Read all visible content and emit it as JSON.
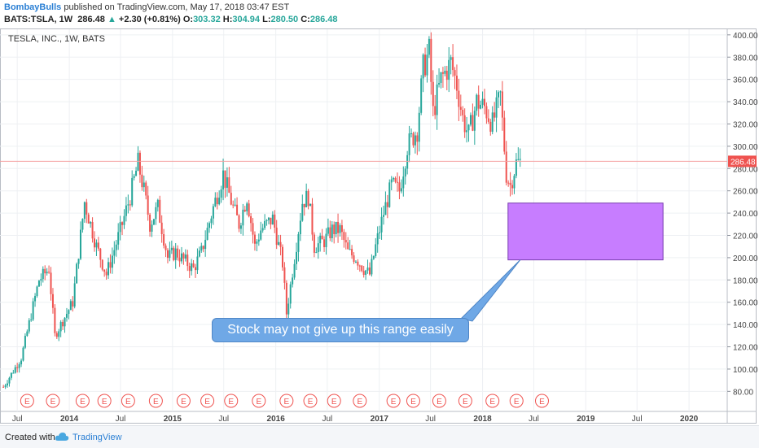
{
  "header": {
    "author": "BombayBulls",
    "published": " published on TradingView.com, May 17, 2018 03:47 EST",
    "symbol": "BATS:TSLA, 1W",
    "last": "286.48",
    "change_arrow": "▲",
    "change": "+2.30 (+0.81%)",
    "o_label": "O:",
    "o_value": "303.32",
    "h_label": "H:",
    "h_value": "304.94",
    "l_label": "L:",
    "l_value": "280.50",
    "c_label": "C:",
    "c_value": "286.48"
  },
  "footer": {
    "created": "Created with",
    "brand": "TradingView"
  },
  "annotation": {
    "text": "Stock may not give up this range easily"
  },
  "colors": {
    "up": "#26a69a",
    "down": "#ef5350",
    "zone_fill": "#c77dff",
    "zone_stroke": "#7a3fb0",
    "callout": "#6fa8e6",
    "price_line": "#f4a0a0",
    "earnings": "#ef5350"
  },
  "chart_data": {
    "type": "candlestick",
    "title": "TESLA, INC., 1W, BATS",
    "x_range": [
      "2013-05",
      "2020-05"
    ],
    "ylim": [
      62,
      405
    ],
    "y_ticks": [
      80,
      100,
      120,
      140,
      160,
      180,
      200,
      220,
      240,
      260,
      280,
      300,
      320,
      340,
      360,
      380,
      400
    ],
    "y_tick_labels": [
      "80.00",
      "100.00",
      "120.00",
      "140.00",
      "160.00",
      "180.00",
      "200.00",
      "220.00",
      "240.00",
      "260.00",
      "280.00",
      "300.00",
      "320.00",
      "340.00",
      "360.00",
      "380.00",
      "400.00"
    ],
    "x_ticks": [
      {
        "label": "Jul",
        "date": "2013-07-01"
      },
      {
        "label": "2014",
        "date": "2014-01-01"
      },
      {
        "label": "Jul",
        "date": "2014-07-01"
      },
      {
        "label": "2015",
        "date": "2015-01-01"
      },
      {
        "label": "Jul",
        "date": "2015-07-01"
      },
      {
        "label": "2016",
        "date": "2016-01-01"
      },
      {
        "label": "Jul",
        "date": "2016-07-01"
      },
      {
        "label": "2017",
        "date": "2017-01-01"
      },
      {
        "label": "Jul",
        "date": "2017-07-01"
      },
      {
        "label": "2018",
        "date": "2018-01-01"
      },
      {
        "label": "Jul",
        "date": "2018-07-01"
      },
      {
        "label": "2019",
        "date": "2019-01-01"
      },
      {
        "label": "Jul",
        "date": "2019-07-01"
      },
      {
        "label": "2020",
        "date": "2020-01-01"
      }
    ],
    "last_price": 286.48,
    "last_price_label": "286.48",
    "anchors": [
      [
        "2013-05-13",
        84
      ],
      [
        "2013-07-15",
        110
      ],
      [
        "2013-09-16",
        180
      ],
      [
        "2013-10-21",
        190
      ],
      [
        "2013-11-11",
        130
      ],
      [
        "2013-12-02",
        140
      ],
      [
        "2014-01-13",
        160
      ],
      [
        "2014-02-24",
        250
      ],
      [
        "2014-04-07",
        210
      ],
      [
        "2014-05-12",
        185
      ],
      [
        "2014-07-01",
        225
      ],
      [
        "2014-08-04",
        255
      ],
      [
        "2014-09-01",
        285
      ],
      [
        "2014-09-22",
        260
      ],
      [
        "2014-10-13",
        230
      ],
      [
        "2014-11-10",
        245
      ],
      [
        "2014-12-15",
        200
      ],
      [
        "2015-01-12",
        205
      ],
      [
        "2015-02-09",
        198
      ],
      [
        "2015-03-16",
        190
      ],
      [
        "2015-04-13",
        205
      ],
      [
        "2015-05-25",
        245
      ],
      [
        "2015-06-29",
        275
      ],
      [
        "2015-08-03",
        245
      ],
      [
        "2015-08-24",
        230
      ],
      [
        "2015-09-21",
        255
      ],
      [
        "2015-10-19",
        210
      ],
      [
        "2015-11-09",
        225
      ],
      [
        "2015-12-21",
        235
      ],
      [
        "2016-01-25",
        195
      ],
      [
        "2016-02-08",
        150
      ],
      [
        "2016-03-07",
        200
      ],
      [
        "2016-04-04",
        250
      ],
      [
        "2016-04-25",
        255
      ],
      [
        "2016-05-16",
        210
      ],
      [
        "2016-06-20",
        215
      ],
      [
        "2016-07-18",
        225
      ],
      [
        "2016-08-15",
        225
      ],
      [
        "2016-09-12",
        205
      ],
      [
        "2016-10-10",
        200
      ],
      [
        "2016-11-07",
        190
      ],
      [
        "2016-11-28",
        185
      ],
      [
        "2016-12-19",
        210
      ],
      [
        "2017-01-16",
        240
      ],
      [
        "2017-02-13",
        265
      ],
      [
        "2017-03-13",
        260
      ],
      [
        "2017-04-10",
        300
      ],
      [
        "2017-05-15",
        315
      ],
      [
        "2017-06-05",
        370
      ],
      [
        "2017-06-26",
        385
      ],
      [
        "2017-07-10",
        330
      ],
      [
        "2017-08-07",
        360
      ],
      [
        "2017-09-11",
        375
      ],
      [
        "2017-10-02",
        355
      ],
      [
        "2017-10-23",
        325
      ],
      [
        "2017-11-13",
        310
      ],
      [
        "2017-12-11",
        340
      ],
      [
        "2018-01-08",
        335
      ],
      [
        "2018-02-05",
        320
      ],
      [
        "2018-03-05",
        345
      ],
      [
        "2018-03-26",
        275
      ],
      [
        "2018-04-09",
        265
      ],
      [
        "2018-04-30",
        285
      ],
      [
        "2018-05-14",
        286
      ]
    ],
    "earnings_dates": [
      "2013-08-05",
      "2013-11-04",
      "2014-02-17",
      "2014-05-05",
      "2014-07-28",
      "2014-11-03",
      "2015-02-09",
      "2015-05-04",
      "2015-07-27",
      "2015-11-02",
      "2016-02-08",
      "2016-05-02",
      "2016-07-25",
      "2016-10-24",
      "2017-02-20",
      "2017-05-01",
      "2017-08-01",
      "2017-11-01",
      "2018-02-05",
      "2018-05-01",
      "2018-07-30"
    ],
    "earnings_label": "E",
    "support_zone": {
      "x0": "2018-04-01",
      "x1": "2019-10-01",
      "y0": 198,
      "y1": 249
    }
  }
}
